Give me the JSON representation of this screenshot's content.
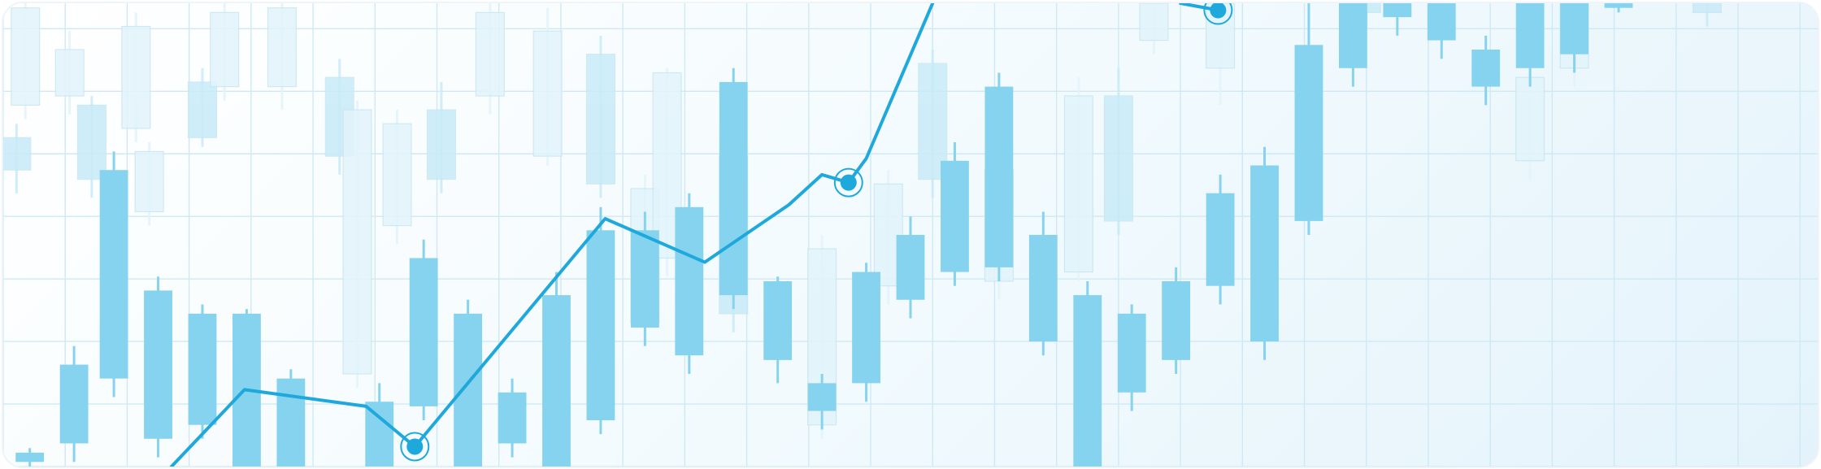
{
  "colors": {
    "grid": "#cfe9f4",
    "candle_front": "#86d3ef",
    "candle_mid": "#c8ebf8",
    "candle_back": "#e2f4fb",
    "candle_outline": "#c7e6f2",
    "line": "#1fa8dc",
    "marker": "#1fa8dc"
  },
  "chart_data": {
    "type": "candlestick",
    "title": "",
    "xlabel": "",
    "ylabel": "",
    "grid": true,
    "legend": "none",
    "xlim": [
      0,
      41
    ],
    "ylim": [
      0,
      100
    ],
    "grid_x_step": 1.4,
    "grid_y_step": 13.5,
    "series": [
      {
        "layer": "background",
        "candles": [
          {
            "x": 0.3,
            "o": 64,
            "c": 71,
            "h": 74,
            "l": 59
          },
          {
            "x": 0.5,
            "o": 78,
            "c": 99,
            "h": 100,
            "l": 75
          },
          {
            "x": 1.5,
            "o": 80,
            "c": 90,
            "h": 94,
            "l": 76
          },
          {
            "x": 2.0,
            "o": 62,
            "c": 78,
            "h": 80,
            "l": 58
          },
          {
            "x": 3.0,
            "o": 73,
            "c": 95,
            "h": 98,
            "l": 70
          },
          {
            "x": 3.3,
            "o": 55,
            "c": 68,
            "h": 70,
            "l": 52
          },
          {
            "x": 4.5,
            "o": 71,
            "c": 83,
            "h": 86,
            "l": 69
          },
          {
            "x": 5.0,
            "o": 82,
            "c": 98,
            "h": 100,
            "l": 79
          },
          {
            "x": 6.3,
            "o": 82,
            "c": 99,
            "h": 100,
            "l": 77
          },
          {
            "x": 7.6,
            "o": 67,
            "c": 84,
            "h": 88,
            "l": 63
          },
          {
            "x": 8.0,
            "o": 20,
            "c": 77,
            "h": 79,
            "l": 17
          },
          {
            "x": 8.9,
            "o": 52,
            "c": 74,
            "h": 77,
            "l": 48
          },
          {
            "x": 9.9,
            "o": 62,
            "c": 77,
            "h": 83,
            "l": 59
          },
          {
            "x": 11.0,
            "o": 80,
            "c": 98,
            "h": 100,
            "l": 76
          },
          {
            "x": 12.3,
            "o": 67,
            "c": 94,
            "h": 99,
            "l": 65
          },
          {
            "x": 13.5,
            "o": 61,
            "c": 89,
            "h": 93,
            "l": 58
          },
          {
            "x": 14.5,
            "o": 31,
            "c": 60,
            "h": 63,
            "l": 27
          },
          {
            "x": 15.0,
            "o": 45,
            "c": 85,
            "h": 86,
            "l": 41
          },
          {
            "x": 16.5,
            "o": 33,
            "c": 67,
            "h": 71,
            "l": 29
          },
          {
            "x": 18.5,
            "o": 9,
            "c": 47,
            "h": 50,
            "l": 6
          },
          {
            "x": 20.0,
            "o": 39,
            "c": 61,
            "h": 64,
            "l": 35
          },
          {
            "x": 21.0,
            "o": 62,
            "c": 87,
            "h": 90,
            "l": 58
          },
          {
            "x": 22.5,
            "o": 40,
            "c": 64,
            "h": 68,
            "l": 36
          },
          {
            "x": 24.3,
            "o": 42,
            "c": 80,
            "h": 84,
            "l": 40
          },
          {
            "x": 25.2,
            "o": 53,
            "c": 80,
            "h": 86,
            "l": 50
          },
          {
            "x": 26.0,
            "o": 92,
            "c": 100,
            "h": 100,
            "l": 89
          },
          {
            "x": 27.5,
            "o": 86,
            "c": 100,
            "h": 100,
            "l": 78
          },
          {
            "x": 30.8,
            "o": 98,
            "c": 100,
            "h": 100,
            "l": 95
          },
          {
            "x": 34.5,
            "o": 66,
            "c": 84,
            "h": 89,
            "l": 62
          },
          {
            "x": 35.5,
            "o": 86,
            "c": 100,
            "h": 100,
            "l": 82
          },
          {
            "x": 38.5,
            "o": 98,
            "c": 100,
            "h": 100,
            "l": 95
          }
        ]
      },
      {
        "layer": "foreground",
        "candles": [
          {
            "x": 0.6,
            "o": 1,
            "c": 3,
            "h": 4,
            "l": 0
          },
          {
            "x": 1.6,
            "o": 5,
            "c": 22,
            "h": 26,
            "l": 1
          },
          {
            "x": 2.5,
            "o": 19,
            "c": 64,
            "h": 68,
            "l": 15
          },
          {
            "x": 3.5,
            "o": 6,
            "c": 38,
            "h": 41,
            "l": 2
          },
          {
            "x": 4.5,
            "o": 9,
            "c": 33,
            "h": 35,
            "l": 6
          },
          {
            "x": 5.5,
            "o": 0,
            "c": 33,
            "h": 34,
            "l": 0
          },
          {
            "x": 6.5,
            "o": 0,
            "c": 19,
            "h": 21,
            "l": 0
          },
          {
            "x": 8.5,
            "o": 0,
            "c": 14,
            "h": 18,
            "l": 0
          },
          {
            "x": 9.5,
            "o": 13,
            "c": 45,
            "h": 49,
            "l": 10
          },
          {
            "x": 10.5,
            "o": 0,
            "c": 33,
            "h": 36,
            "l": 0
          },
          {
            "x": 11.5,
            "o": 5,
            "c": 16,
            "h": 19,
            "l": 2
          },
          {
            "x": 12.5,
            "o": 0,
            "c": 37,
            "h": 42,
            "l": 0
          },
          {
            "x": 13.5,
            "o": 10,
            "c": 51,
            "h": 56,
            "l": 7
          },
          {
            "x": 14.5,
            "o": 30,
            "c": 51,
            "h": 55,
            "l": 26
          },
          {
            "x": 15.5,
            "o": 24,
            "c": 56,
            "h": 59,
            "l": 20
          },
          {
            "x": 16.5,
            "o": 37,
            "c": 83,
            "h": 86,
            "l": 34
          },
          {
            "x": 17.5,
            "o": 23,
            "c": 40,
            "h": 41,
            "l": 18
          },
          {
            "x": 18.5,
            "o": 12,
            "c": 18,
            "h": 20,
            "l": 8
          },
          {
            "x": 19.5,
            "o": 18,
            "c": 42,
            "h": 44,
            "l": 14
          },
          {
            "x": 20.5,
            "o": 36,
            "c": 50,
            "h": 54,
            "l": 32
          },
          {
            "x": 21.5,
            "o": 42,
            "c": 66,
            "h": 70,
            "l": 39
          },
          {
            "x": 22.5,
            "o": 43,
            "c": 82,
            "h": 85,
            "l": 40
          },
          {
            "x": 23.5,
            "o": 27,
            "c": 50,
            "h": 55,
            "l": 24
          },
          {
            "x": 24.5,
            "o": 0,
            "c": 37,
            "h": 40,
            "l": 0
          },
          {
            "x": 25.5,
            "o": 16,
            "c": 33,
            "h": 35,
            "l": 12
          },
          {
            "x": 26.5,
            "o": 23,
            "c": 40,
            "h": 43,
            "l": 20
          },
          {
            "x": 27.5,
            "o": 39,
            "c": 59,
            "h": 63,
            "l": 35
          },
          {
            "x": 28.5,
            "o": 27,
            "c": 65,
            "h": 69,
            "l": 23
          },
          {
            "x": 29.5,
            "o": 53,
            "c": 91,
            "h": 100,
            "l": 50
          },
          {
            "x": 30.5,
            "o": 86,
            "c": 100,
            "h": 100,
            "l": 82
          },
          {
            "x": 31.5,
            "o": 97,
            "c": 100,
            "h": 100,
            "l": 93
          },
          {
            "x": 32.5,
            "o": 92,
            "c": 100,
            "h": 100,
            "l": 88
          },
          {
            "x": 33.5,
            "o": 82,
            "c": 90,
            "h": 93,
            "l": 78
          },
          {
            "x": 34.5,
            "o": 86,
            "c": 100,
            "h": 100,
            "l": 82
          },
          {
            "x": 35.5,
            "o": 89,
            "c": 100,
            "h": 100,
            "l": 85
          },
          {
            "x": 36.5,
            "o": 99,
            "c": 100,
            "h": 100,
            "l": 98
          }
        ]
      }
    ],
    "trend_line": {
      "points": [
        [
          3.8,
          0
        ],
        [
          5.45,
          16.6
        ],
        [
          8.2,
          13
        ],
        [
          9.3,
          4.3
        ],
        [
          13.6,
          53.5
        ],
        [
          15.85,
          44.1
        ],
        [
          17.75,
          56.5
        ],
        [
          18.5,
          63
        ],
        [
          19.1,
          61.3
        ],
        [
          19.5,
          66.5
        ],
        [
          21,
          100
        ]
      ],
      "right_points": [
        [
          26.6,
          100
        ],
        [
          27.45,
          98.5
        ]
      ],
      "markers": [
        [
          9.3,
          4.3
        ],
        [
          19.1,
          61.3
        ],
        [
          27.45,
          98.5
        ]
      ]
    }
  }
}
